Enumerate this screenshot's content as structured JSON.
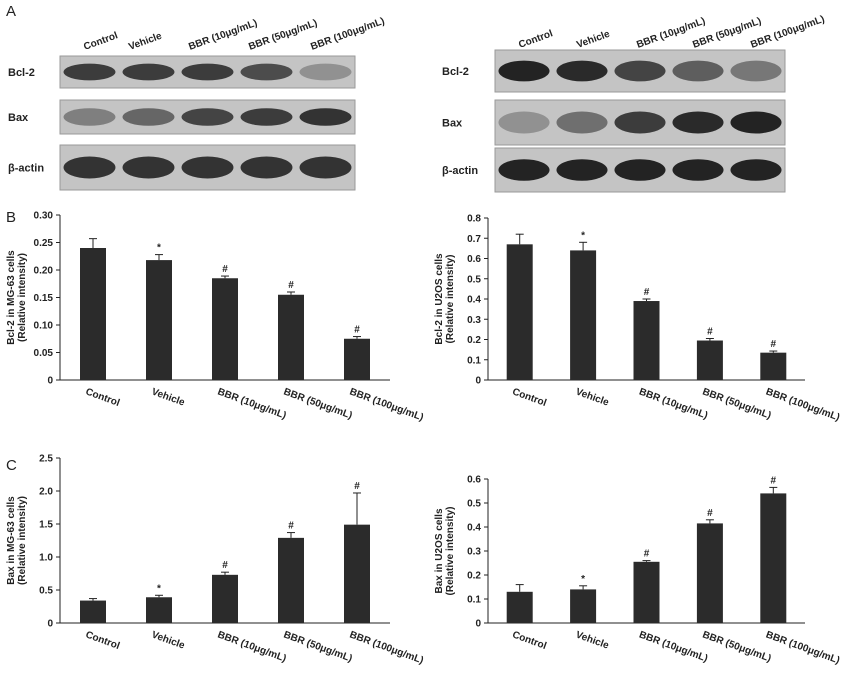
{
  "panels": [
    "A",
    "B",
    "C"
  ],
  "blots": [
    {
      "lanes": [
        "Control",
        "Vehicle",
        "BBR (10μg/mL)",
        "BBR  (50μg/mL)",
        "BBR (100μg/mL)"
      ],
      "rows": [
        "Bcl-2",
        "Bax",
        "β-actin"
      ]
    },
    {
      "lanes": [
        "Control",
        "Vehicle",
        "BBR (10μg/mL)",
        "BBR  (50μg/mL)",
        "BBR (100μg/mL)"
      ],
      "rows": [
        "Bcl-2",
        "Bax",
        "β-actin"
      ]
    }
  ],
  "chart_data": [
    {
      "type": "bar",
      "ylabel": [
        "Bcl-2 in MG-63 cells",
        "(Relative intensity)"
      ],
      "categories": [
        "Control",
        "Vehicle",
        "BBR (10μg/mL)",
        "BBR  (50μg/mL)",
        "BBR (100μg/mL)"
      ],
      "values": [
        0.24,
        0.218,
        0.185,
        0.155,
        0.075
      ],
      "errors": [
        0.017,
        0.01,
        0.004,
        0.005,
        0.004
      ],
      "annotations": [
        null,
        "*",
        "#",
        "#",
        "#"
      ],
      "color": "#2b2b2b",
      "ylim": [
        0,
        0.3
      ],
      "yticks": [
        0,
        0.05,
        {
          "value": 0.1,
          "label": "0.10"
        },
        0.15,
        {
          "value": 0.2,
          "label": "0.20"
        },
        0.25,
        {
          "value": 0.3,
          "label": "0.30"
        }
      ]
    },
    {
      "type": "bar",
      "ylabel": [
        "Bcl-2 in U2OS cells",
        "(Relative intensity)"
      ],
      "categories": [
        "Control",
        "Vehicle",
        "BBR (10μg/mL)",
        "BBR  (50μg/mL)",
        "BBR (100μg/mL)"
      ],
      "values": [
        0.67,
        0.64,
        0.39,
        0.195,
        0.135
      ],
      "errors": [
        0.05,
        0.04,
        0.01,
        0.01,
        0.008
      ],
      "annotations": [
        null,
        "*",
        "#",
        "#",
        "#"
      ],
      "color": "#2b2b2b",
      "ylim": [
        0,
        0.8
      ],
      "yticks": [
        0,
        0.1,
        0.2,
        0.3,
        0.4,
        0.5,
        0.6,
        0.7,
        0.8
      ]
    },
    {
      "type": "bar",
      "ylabel": [
        "Bax in MG-63 cells",
        "(Relative intensity)"
      ],
      "categories": [
        "Control",
        "Vehicle",
        "BBR (10μg/mL)",
        "BBR  (50μg/mL)",
        "BBR (100μg/mL)"
      ],
      "values": [
        0.34,
        0.39,
        0.73,
        1.29,
        1.49
      ],
      "errors": [
        0.03,
        0.03,
        0.04,
        0.08,
        0.48
      ],
      "annotations": [
        null,
        "*",
        "#",
        "#",
        "#"
      ],
      "color": "#2b2b2b",
      "ylim": [
        0,
        2.5
      ],
      "yticks": [
        0,
        0.5,
        {
          "value": 1,
          "label": "1.0"
        },
        1.5,
        {
          "value": 2,
          "label": "2.0"
        },
        2.5
      ]
    },
    {
      "type": "bar",
      "ylabel": [
        "Bax in U2OS cells",
        "(Relative intensity)"
      ],
      "categories": [
        "Control",
        "Vehicle",
        "BBR (10μg/mL)",
        "BBR  (50μg/mL)",
        "BBR (100μg/mL)"
      ],
      "values": [
        0.13,
        0.14,
        0.255,
        0.415,
        0.54
      ],
      "errors": [
        0.03,
        0.015,
        0.005,
        0.015,
        0.025
      ],
      "annotations": [
        null,
        "*",
        "#",
        "#",
        "#"
      ],
      "color": "#2b2b2b",
      "ylim": [
        0,
        0.6
      ],
      "yticks": [
        0,
        0.1,
        0.2,
        0.3,
        0.4,
        0.5,
        0.6
      ]
    }
  ]
}
